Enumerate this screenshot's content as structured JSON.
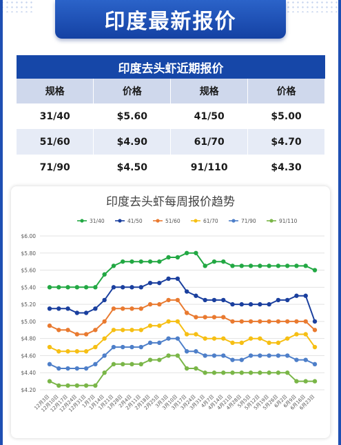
{
  "banner": {
    "title": "印度最新报价"
  },
  "table": {
    "title": "印度去头虾近期报价",
    "headers": [
      "规格",
      "价格",
      "规格",
      "价格"
    ],
    "rows": [
      [
        "31/40",
        "$5.60",
        "41/50",
        "$5.00"
      ],
      [
        "51/60",
        "$4.90",
        "61/70",
        "$4.70"
      ],
      [
        "71/90",
        "$4.50",
        "91/110",
        "$4.30"
      ]
    ]
  },
  "chart_data": {
    "type": "line",
    "title": "印度去头虾每周报价趋势",
    "xlabel": "",
    "ylabel": "",
    "ylim": [
      4.2,
      6.0
    ],
    "yticks": [
      "$4.20",
      "$4.40",
      "$4.60",
      "$4.80",
      "$5.00",
      "$5.20",
      "$5.40",
      "$5.60",
      "$5.80",
      "$6.00"
    ],
    "grid": true,
    "legend_position": "top",
    "categories": [
      "12月3日",
      "12月10日",
      "12月17日",
      "12月24日",
      "12月31日",
      "1月7日",
      "1月14日",
      "1月21日",
      "1月28日",
      "2月4日",
      "2月11日",
      "2月18日",
      "2月25日",
      "3月3日",
      "3月10日",
      "3月17日",
      "3月24日",
      "3月31日",
      "4月7日",
      "4月14日",
      "4月21日",
      "4月28日",
      "5月5日",
      "5月12日",
      "5月19日",
      "5月26日",
      "6月2日",
      "6月9日",
      "6月16日",
      "6月23日"
    ],
    "series": [
      {
        "name": "31/40",
        "color": "#22a843",
        "values": [
          5.4,
          5.4,
          5.4,
          5.4,
          5.4,
          5.4,
          5.55,
          5.65,
          5.7,
          5.7,
          5.7,
          5.7,
          5.7,
          5.75,
          5.75,
          5.8,
          5.8,
          5.65,
          5.7,
          5.7,
          5.65,
          5.65,
          5.65,
          5.65,
          5.65,
          5.65,
          5.65,
          5.65,
          5.65,
          5.6
        ]
      },
      {
        "name": "41/50",
        "color": "#1a3f9e",
        "values": [
          5.15,
          5.15,
          5.15,
          5.1,
          5.1,
          5.15,
          5.25,
          5.4,
          5.4,
          5.4,
          5.4,
          5.45,
          5.45,
          5.5,
          5.5,
          5.35,
          5.3,
          5.25,
          5.25,
          5.25,
          5.2,
          5.2,
          5.2,
          5.2,
          5.2,
          5.25,
          5.25,
          5.3,
          5.3,
          5.0
        ]
      },
      {
        "name": "51/60",
        "color": "#e97a30",
        "values": [
          4.95,
          4.9,
          4.9,
          4.85,
          4.85,
          4.9,
          5.0,
          5.15,
          5.15,
          5.15,
          5.15,
          5.2,
          5.2,
          5.25,
          5.25,
          5.1,
          5.05,
          5.05,
          5.05,
          5.05,
          5.0,
          5.0,
          5.0,
          5.0,
          5.0,
          5.0,
          5.0,
          5.0,
          5.0,
          4.9
        ]
      },
      {
        "name": "61/70",
        "color": "#f6bf14",
        "values": [
          4.7,
          4.65,
          4.65,
          4.65,
          4.65,
          4.7,
          4.8,
          4.9,
          4.9,
          4.9,
          4.9,
          4.95,
          4.95,
          5.0,
          5.0,
          4.85,
          4.85,
          4.8,
          4.8,
          4.8,
          4.75,
          4.75,
          4.8,
          4.8,
          4.75,
          4.75,
          4.8,
          4.85,
          4.85,
          4.7
        ]
      },
      {
        "name": "71/90",
        "color": "#4e7fc9",
        "values": [
          4.5,
          4.45,
          4.45,
          4.45,
          4.45,
          4.5,
          4.6,
          4.7,
          4.7,
          4.7,
          4.7,
          4.75,
          4.75,
          4.8,
          4.8,
          4.65,
          4.65,
          4.6,
          4.6,
          4.6,
          4.55,
          4.55,
          4.6,
          4.6,
          4.6,
          4.6,
          4.6,
          4.55,
          4.55,
          4.5
        ]
      },
      {
        "name": "91/110",
        "color": "#7ab648",
        "values": [
          4.3,
          4.25,
          4.25,
          4.25,
          4.25,
          4.25,
          4.4,
          4.5,
          4.5,
          4.5,
          4.5,
          4.55,
          4.55,
          4.6,
          4.6,
          4.45,
          4.45,
          4.4,
          4.4,
          4.4,
          4.4,
          4.4,
          4.4,
          4.4,
          4.4,
          4.4,
          4.4,
          4.3,
          4.3,
          4.3
        ]
      }
    ]
  }
}
